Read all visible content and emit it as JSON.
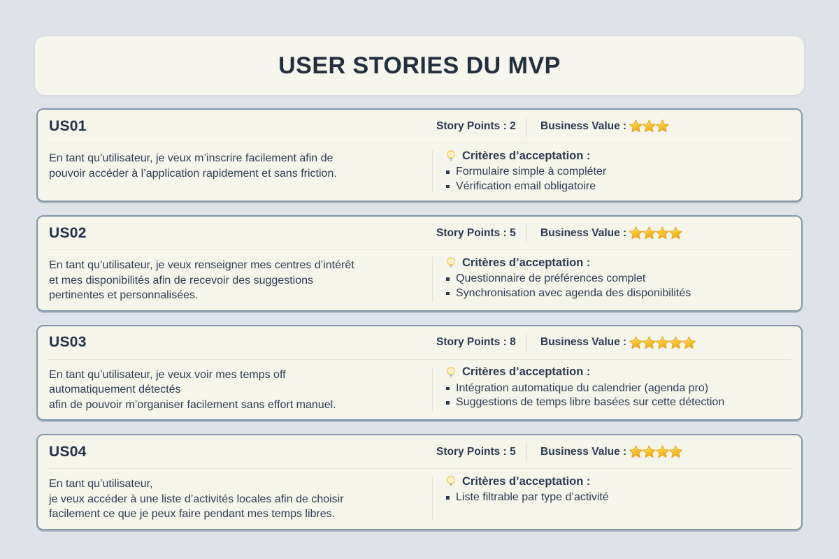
{
  "page": {
    "title": "USER STORIES DU MVP"
  },
  "labels": {
    "story_points": "Story Points :",
    "business_value": "Business Value :",
    "criteria": "Critères d’acceptation :"
  },
  "icons": {
    "star": "star-icon",
    "lightbulb": "lightbulb-icon",
    "bullet": "square-bullet"
  },
  "colors": {
    "page_background": "#dfe3e9",
    "card_background": "#f6f5ec",
    "card_border": "#8397a9",
    "title_text": "#242f3e",
    "body_text": "#2e3c52",
    "star_gold": "#f5b731"
  },
  "stories": [
    {
      "id": "US01",
      "story_points": "2",
      "business_value_stars": 3,
      "description": "En tant qu’utilisateur, je veux m’inscrire facilement afin de\npouvoir accéder à l’application rapidement et sans friction.",
      "criteria": [
        "Formulaire simple à compléter",
        "Vérification email obligatoire"
      ]
    },
    {
      "id": "US02",
      "story_points": "5",
      "business_value_stars": 4,
      "description": "En tant qu’utilisateur, je veux renseigner mes centres d’intérêt\net mes disponibilités afin de recevoir des suggestions\npertinentes et personnalisées.",
      "criteria": [
        "Questionnaire de préférences complet",
        "Synchronisation avec agenda des disponibilités"
      ]
    },
    {
      "id": "US03",
      "story_points": "8",
      "business_value_stars": 5,
      "description": "En tant qu’utilisateur, je veux voir mes temps off\nautomatiquement détectés\nafin de pouvoir m’organiser facilement sans effort manuel.",
      "criteria": [
        "Intégration automatique du calendrier (agenda pro)",
        "Suggestions de temps libre basées sur cette détection"
      ]
    },
    {
      "id": "US04",
      "story_points": "5",
      "business_value_stars": 4,
      "description": "En tant qu’utilisateur,\nje veux accéder à une liste d’activités locales afin de choisir\nfacilement ce que je peux faire pendant mes temps libres.",
      "criteria": [
        "Liste filtrable par type d’activité"
      ]
    }
  ]
}
